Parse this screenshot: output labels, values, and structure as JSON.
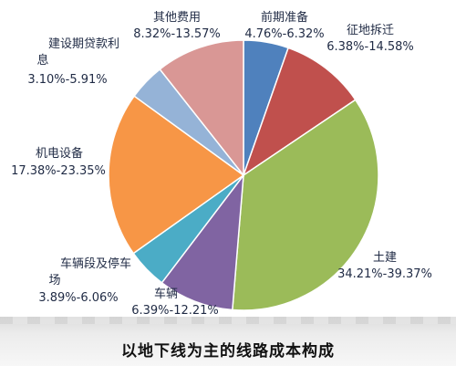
{
  "chart_data": {
    "type": "pie",
    "title": "",
    "caption": "以地下线为主的线路成本构成",
    "slices": [
      {
        "name": "前期准备",
        "range": "4.76%-6.32%",
        "value": 5.54,
        "color": "#4f81bd"
      },
      {
        "name": "征地拆迁",
        "range": "6.38%-14.58%",
        "value": 10.48,
        "color": "#c0504d"
      },
      {
        "name": "土建",
        "range": "34.21%-39.37%",
        "value": 36.79,
        "color": "#9bbb59"
      },
      {
        "name": "车辆",
        "range": "6.39%-12.21%",
        "value": 9.3,
        "color": "#8064a2"
      },
      {
        "name": "车辆段及停车场",
        "range": "3.89%-6.06%",
        "value": 4.98,
        "color": "#4bacc6"
      },
      {
        "name": "机电设备",
        "range": "17.38%-23.35%",
        "value": 20.37,
        "color": "#f79646"
      },
      {
        "name": "建设期贷款利息",
        "range": "3.10%-5.91%",
        "value": 4.51,
        "color": "#95b3d7"
      },
      {
        "name": "其他费用",
        "range": "8.32%-13.57%",
        "value": 10.95,
        "color": "#d99795"
      }
    ]
  },
  "labels": {
    "qianqi": {
      "name": "前期准备",
      "range": "4.76%-6.32%"
    },
    "zhengdi": {
      "name": "征地拆迁",
      "range": "6.38%-14.58%"
    },
    "tujian": {
      "name": "土建",
      "range": "34.21%-39.37%"
    },
    "cheliang": {
      "name": "车辆",
      "range": "6.39%-12.21%"
    },
    "cheliangduan": {
      "name_line1": "车辆段及停车",
      "name_line2": "场",
      "range": "3.89%-6.06%"
    },
    "jidian": {
      "name": "机电设备",
      "range": "17.38%-23.35%"
    },
    "daikuan": {
      "name_line1": "建设期贷款利",
      "name_line2": "息",
      "range": "3.10%-5.91%"
    },
    "qita": {
      "name": "其他费用",
      "range": "8.32%-13.57%"
    }
  }
}
